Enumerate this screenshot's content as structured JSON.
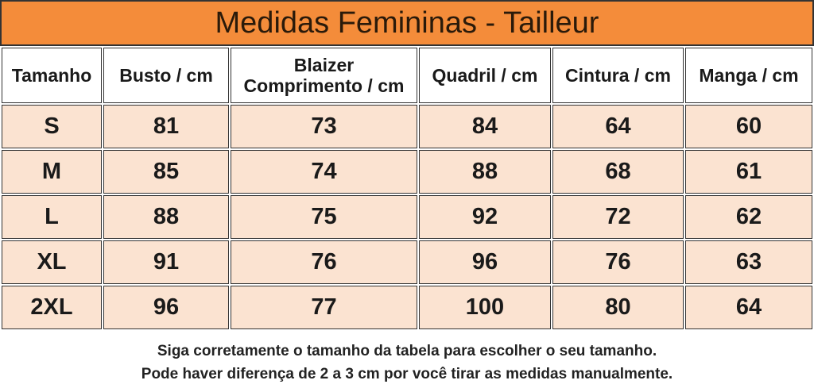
{
  "title": "Medidas Femininas - Tailleur",
  "table": {
    "headers": [
      "Tamanho",
      "Busto / cm",
      "Blaizer\nComprimento / cm",
      "Quadril / cm",
      "Cintura / cm",
      "Manga / cm"
    ],
    "rows": [
      [
        "S",
        81,
        73,
        84,
        64,
        60
      ],
      [
        "M",
        85,
        74,
        88,
        68,
        61
      ],
      [
        "L",
        88,
        75,
        92,
        72,
        62
      ],
      [
        "XL",
        91,
        76,
        96,
        76,
        63
      ],
      [
        "2XL",
        96,
        77,
        100,
        80,
        64
      ]
    ]
  },
  "notes": [
    "Siga corretamente o tamanho da tabela para escolher o seu tamanho.",
    "Pode haver diferença de 2 a 3 cm por você tirar as medidas manualmente."
  ]
}
